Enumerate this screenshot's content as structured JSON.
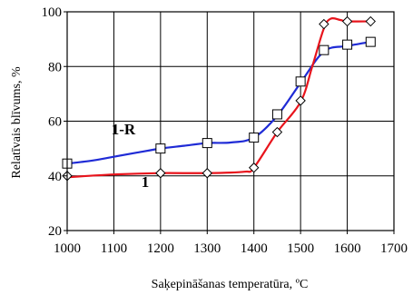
{
  "chart_data": {
    "type": "line",
    "xlabel": "Saķepināšanas temperatūra, ºC",
    "ylabel": "Relatīvais blīvums, %",
    "xlim": [
      1000,
      1700
    ],
    "ylim": [
      20,
      100
    ],
    "xticks": [
      1000,
      1100,
      1200,
      1300,
      1400,
      1500,
      1600,
      1700
    ],
    "yticks": [
      20,
      40,
      60,
      80,
      100
    ],
    "grid": true,
    "series": [
      {
        "name": "1-R",
        "color": "#1f2bd6",
        "marker": "square",
        "curve": [
          [
            1000,
            44.5
          ],
          [
            1050,
            45.5
          ],
          [
            1100,
            47
          ],
          [
            1150,
            48.5
          ],
          [
            1200,
            50
          ],
          [
            1250,
            51
          ],
          [
            1300,
            52
          ],
          [
            1350,
            52.2
          ],
          [
            1400,
            54
          ],
          [
            1450,
            62
          ],
          [
            1500,
            74
          ],
          [
            1550,
            85.5
          ],
          [
            1600,
            87.5
          ],
          [
            1650,
            89
          ]
        ],
        "points": [
          [
            1000,
            44.5
          ],
          [
            1200,
            50
          ],
          [
            1300,
            52
          ],
          [
            1400,
            54
          ],
          [
            1450,
            62.5
          ],
          [
            1500,
            74.5
          ],
          [
            1550,
            86
          ],
          [
            1600,
            88
          ],
          [
            1650,
            89
          ]
        ]
      },
      {
        "name": "1",
        "color": "#e8141c",
        "marker": "diamond",
        "curve": [
          [
            1000,
            39.5
          ],
          [
            1100,
            40.5
          ],
          [
            1200,
            41
          ],
          [
            1300,
            41
          ],
          [
            1380,
            41.5
          ],
          [
            1400,
            43
          ],
          [
            1450,
            56
          ],
          [
            1500,
            67
          ],
          [
            1525,
            80
          ],
          [
            1550,
            94
          ],
          [
            1565,
            97.5
          ],
          [
            1585,
            97
          ],
          [
            1600,
            96.5
          ],
          [
            1650,
            96.5
          ]
        ],
        "points": [
          [
            1000,
            40
          ],
          [
            1200,
            41
          ],
          [
            1300,
            41
          ],
          [
            1400,
            43
          ],
          [
            1450,
            56
          ],
          [
            1500,
            67.5
          ],
          [
            1550,
            95.5
          ],
          [
            1600,
            96.5
          ],
          [
            1650,
            96.5
          ]
        ]
      }
    ]
  }
}
